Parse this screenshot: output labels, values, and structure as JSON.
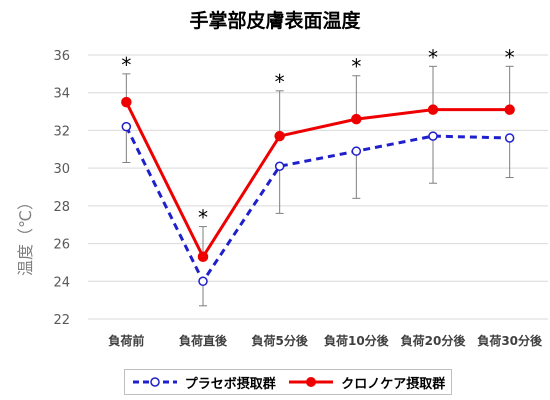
{
  "chart_data": {
    "type": "line",
    "title": "手掌部皮膚表面温度",
    "xlabel": "",
    "ylabel": "温度（℃）",
    "categories": [
      "負荷前",
      "負荷直後",
      "負荷5分後",
      "負荷10分後",
      "負荷20分後",
      "負荷30分後"
    ],
    "ylim": [
      22,
      36
    ],
    "yticks": [
      22,
      24,
      26,
      28,
      30,
      32,
      34,
      36
    ],
    "grid": true,
    "legend": "bottom",
    "significance_marker": "*",
    "significant": [
      true,
      true,
      true,
      true,
      true,
      true
    ],
    "series": [
      {
        "name": "プラセボ摂取群",
        "color": "#1f1fcc",
        "style": "dashed",
        "marker": "open-circle",
        "values": [
          32.2,
          24.0,
          30.1,
          30.9,
          31.7,
          31.6
        ],
        "error_lower": [
          30.3,
          22.7,
          27.6,
          28.4,
          29.2,
          29.5
        ],
        "error_upper": [
          null,
          null,
          null,
          null,
          null,
          null
        ]
      },
      {
        "name": "クロノケア摂取群",
        "color": "#ee0000",
        "style": "solid",
        "marker": "filled-circle",
        "values": [
          33.5,
          25.3,
          31.7,
          32.6,
          33.1,
          33.1
        ],
        "error_lower": [
          null,
          null,
          null,
          null,
          null,
          null
        ],
        "error_upper": [
          35.0,
          26.9,
          34.1,
          34.9,
          35.4,
          35.4
        ]
      }
    ]
  }
}
